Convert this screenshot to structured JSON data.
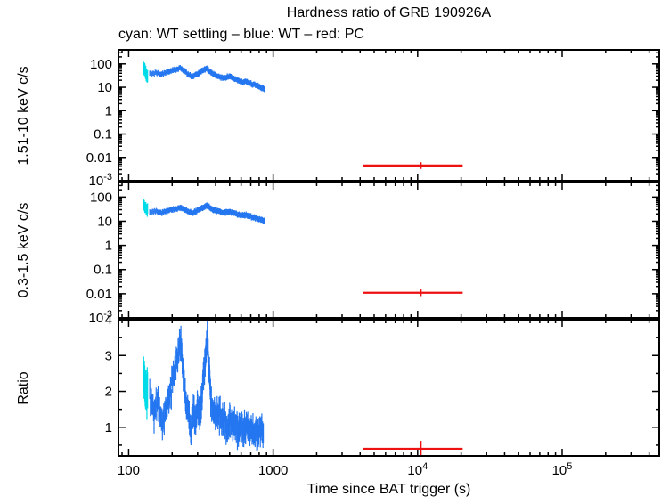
{
  "title": "Hardness ratio of GRB 190926A",
  "subtitle": "cyan: WT settling – blue: WT – red: PC",
  "xlabel": "Time since BAT trigger (s)",
  "colors": {
    "wt_settling": "#00dbe8",
    "wt": "#2577f0",
    "pc": "#ee1111",
    "frame": "#000000"
  },
  "x_axis": {
    "scale": "log",
    "min": 85,
    "max": 470000,
    "ticks": [
      {
        "value": 100,
        "label": "100"
      },
      {
        "value": 1000,
        "label": "1000"
      },
      {
        "value": 10000,
        "label": "10^4"
      },
      {
        "value": 100000,
        "label": "10^5"
      }
    ]
  },
  "chart_data": [
    {
      "type": "line",
      "ylabel": "1.51-10 keV c/s",
      "yscale": "log",
      "ylim": [
        0.001,
        400
      ],
      "yticks": [
        {
          "value": 100,
          "label": "100"
        },
        {
          "value": 10,
          "label": "10"
        },
        {
          "value": 1,
          "label": "1"
        },
        {
          "value": 0.1,
          "label": "0.1"
        },
        {
          "value": 0.01,
          "label": "0.01"
        },
        {
          "value": 0.001,
          "label": "10^-3"
        }
      ],
      "series": [
        {
          "name": "WT settling",
          "color_key": "wt_settling",
          "style": "errband",
          "err": 0.6,
          "scatter": 0.15,
          "samples_per_seg": 4,
          "keypoints": [
            [
              127,
              75
            ],
            [
              130,
              48
            ],
            [
              133,
              32
            ],
            [
              136,
              27
            ]
          ]
        },
        {
          "name": "WT",
          "color_key": "wt",
          "style": "errband",
          "err": 0.25,
          "scatter": 0.1,
          "samples_per_seg": 7,
          "keypoints": [
            [
              140,
              38
            ],
            [
              155,
              42
            ],
            [
              170,
              36
            ],
            [
              185,
              45
            ],
            [
              200,
              52
            ],
            [
              215,
              58
            ],
            [
              230,
              65
            ],
            [
              245,
              48
            ],
            [
              260,
              34
            ],
            [
              275,
              28
            ],
            [
              290,
              33
            ],
            [
              305,
              40
            ],
            [
              320,
              50
            ],
            [
              335,
              58
            ],
            [
              350,
              62
            ],
            [
              365,
              48
            ],
            [
              380,
              38
            ],
            [
              400,
              32
            ],
            [
              425,
              28
            ],
            [
              450,
              25
            ],
            [
              475,
              27
            ],
            [
              500,
              29
            ],
            [
              530,
              24
            ],
            [
              560,
              21
            ],
            [
              590,
              18
            ],
            [
              620,
              16
            ],
            [
              650,
              18
            ],
            [
              690,
              15
            ],
            [
              730,
              13
            ],
            [
              770,
              12
            ],
            [
              810,
              10
            ],
            [
              850,
              9
            ],
            [
              880,
              8
            ]
          ]
        },
        {
          "name": "PC",
          "color_key": "pc",
          "style": "point",
          "points": [
            {
              "x": 10500,
              "y": 0.0045,
              "xlo": 4200,
              "xhi": 20500,
              "ylo": 0.0032,
              "yhi": 0.0062
            }
          ]
        }
      ]
    },
    {
      "type": "line",
      "ylabel": "0.3-1.5 keV c/s",
      "yscale": "log",
      "ylim": [
        0.001,
        400
      ],
      "yticks": [
        {
          "value": 100,
          "label": "100"
        },
        {
          "value": 10,
          "label": "10"
        },
        {
          "value": 1,
          "label": "1"
        },
        {
          "value": 0.1,
          "label": "0.1"
        },
        {
          "value": 0.01,
          "label": "0.01"
        },
        {
          "value": 0.001,
          "label": "10^-3"
        }
      ],
      "series": [
        {
          "name": "WT settling",
          "color_key": "wt_settling",
          "style": "errband",
          "err": 0.5,
          "scatter": 0.15,
          "samples_per_seg": 4,
          "keypoints": [
            [
              127,
              48
            ],
            [
              130,
              38
            ],
            [
              133,
              30
            ],
            [
              136,
              26
            ]
          ]
        },
        {
          "name": "WT",
          "color_key": "wt",
          "style": "errband",
          "err": 0.25,
          "scatter": 0.1,
          "samples_per_seg": 7,
          "keypoints": [
            [
              140,
              24
            ],
            [
              155,
              26
            ],
            [
              170,
              23
            ],
            [
              185,
              27
            ],
            [
              200,
              30
            ],
            [
              215,
              33
            ],
            [
              230,
              36
            ],
            [
              245,
              30
            ],
            [
              260,
              25
            ],
            [
              275,
              22
            ],
            [
              290,
              25
            ],
            [
              305,
              29
            ],
            [
              320,
              34
            ],
            [
              335,
              40
            ],
            [
              350,
              44
            ],
            [
              365,
              36
            ],
            [
              380,
              30
            ],
            [
              400,
              27
            ],
            [
              425,
              25
            ],
            [
              450,
              23
            ],
            [
              475,
              24
            ],
            [
              500,
              25
            ],
            [
              530,
              22
            ],
            [
              560,
              20
            ],
            [
              590,
              18
            ],
            [
              620,
              17
            ],
            [
              650,
              18
            ],
            [
              690,
              16
            ],
            [
              730,
              14
            ],
            [
              770,
              13
            ],
            [
              810,
              12
            ],
            [
              850,
              11
            ],
            [
              880,
              10
            ]
          ]
        },
        {
          "name": "PC",
          "color_key": "pc",
          "style": "point",
          "points": [
            {
              "x": 10500,
              "y": 0.011,
              "xlo": 4200,
              "xhi": 20500,
              "ylo": 0.008,
              "yhi": 0.015
            }
          ]
        }
      ]
    },
    {
      "type": "line",
      "ylabel": "Ratio",
      "yscale": "linear",
      "ylim": [
        0.2,
        4
      ],
      "yticks": [
        {
          "value": 4,
          "label": "4"
        },
        {
          "value": 3,
          "label": "3"
        },
        {
          "value": 2,
          "label": "2"
        },
        {
          "value": 1,
          "label": "1"
        }
      ],
      "series": [
        {
          "name": "WT settling",
          "color_key": "wt_settling",
          "style": "errband",
          "err": 0.5,
          "scatter": 0.2,
          "samples_per_seg": 4,
          "keypoints": [
            [
              127,
              2.5
            ],
            [
              130,
              2.1
            ],
            [
              133,
              1.8
            ],
            [
              136,
              2.2
            ]
          ]
        },
        {
          "name": "WT",
          "color_key": "wt",
          "style": "errband",
          "err": 0.28,
          "scatter": 0.28,
          "samples_per_seg": 8,
          "keypoints": [
            [
              140,
              1.9
            ],
            [
              150,
              1.4
            ],
            [
              160,
              1.7
            ],
            [
              170,
              1.2
            ],
            [
              180,
              1.5
            ],
            [
              190,
              1.8
            ],
            [
              200,
              2.2
            ],
            [
              210,
              2.6
            ],
            [
              220,
              3.0
            ],
            [
              230,
              3.4
            ],
            [
              240,
              2.4
            ],
            [
              250,
              1.7
            ],
            [
              260,
              1.3
            ],
            [
              270,
              1.1
            ],
            [
              280,
              1.4
            ],
            [
              290,
              1.2
            ],
            [
              300,
              1.5
            ],
            [
              310,
              1.3
            ],
            [
              320,
              1.8
            ],
            [
              330,
              2.4
            ],
            [
              340,
              3.0
            ],
            [
              350,
              3.5
            ],
            [
              360,
              2.6
            ],
            [
              370,
              1.8
            ],
            [
              385,
              1.4
            ],
            [
              400,
              1.2
            ],
            [
              420,
              1.5
            ],
            [
              440,
              1.1
            ],
            [
              460,
              1.3
            ],
            [
              480,
              1.0
            ],
            [
              500,
              1.2
            ],
            [
              525,
              0.9
            ],
            [
              550,
              1.1
            ],
            [
              575,
              0.85
            ],
            [
              600,
              1.0
            ],
            [
              630,
              0.9
            ],
            [
              660,
              1.05
            ],
            [
              700,
              0.85
            ],
            [
              740,
              0.95
            ],
            [
              780,
              0.8
            ],
            [
              820,
              0.9
            ],
            [
              860,
              0.85
            ]
          ]
        },
        {
          "name": "PC",
          "color_key": "pc",
          "style": "point",
          "points": [
            {
              "x": 10500,
              "y": 0.4,
              "xlo": 4200,
              "xhi": 20500,
              "ylo": 0.22,
              "yhi": 0.62
            }
          ]
        }
      ]
    }
  ]
}
